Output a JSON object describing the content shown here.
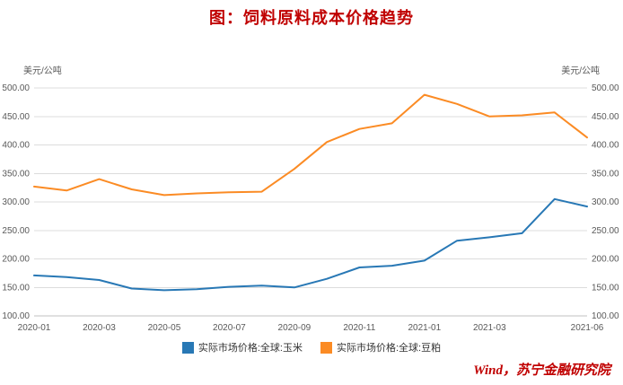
{
  "title": "图：饲料原料成本价格趋势",
  "source": "Wind，苏宁金融研究院",
  "colors": {
    "title": "#c00000",
    "source": "#c00000",
    "axis_text": "#595959",
    "grid": "#dcdcdc",
    "axis_line": "#c0c0c0"
  },
  "chart_data": {
    "type": "line",
    "title": "图：饲料原料成本价格趋势",
    "ylabel_left": "美元/公吨",
    "ylabel_right": "美元/公吨",
    "ylim": [
      100,
      500
    ],
    "yticks": [
      100,
      150,
      200,
      250,
      300,
      350,
      400,
      450,
      500
    ],
    "ytick_format_decimals": 2,
    "grid": true,
    "legend_position": "bottom",
    "x": [
      "2020-01",
      "2020-02",
      "2020-03",
      "2020-04",
      "2020-05",
      "2020-06",
      "2020-07",
      "2020-08",
      "2020-09",
      "2020-10",
      "2020-11",
      "2020-12",
      "2021-01",
      "2021-02",
      "2021-03",
      "2021-04",
      "2021-05",
      "2021-06"
    ],
    "x_tick_indices": [
      0,
      2,
      4,
      6,
      8,
      10,
      12,
      14,
      17
    ],
    "x_tick_labels": [
      "2020-01",
      "2020-03",
      "2020-05",
      "2020-07",
      "2020-09",
      "2020-11",
      "2021-01",
      "2021-03",
      "2021-06"
    ],
    "series": [
      {
        "name": "实际市场价格:全球:玉米",
        "color": "#2878b5",
        "values": [
          171,
          168,
          163,
          148,
          145,
          147,
          151,
          153,
          150,
          165,
          185,
          188,
          197,
          232,
          238,
          245,
          305,
          292
        ]
      },
      {
        "name": "实际市场价格:全球:豆粕",
        "color": "#fb8b24",
        "values": [
          327,
          320,
          340,
          322,
          312,
          315,
          317,
          318,
          358,
          405,
          428,
          438,
          488,
          472,
          450,
          452,
          457,
          413
        ]
      }
    ]
  }
}
